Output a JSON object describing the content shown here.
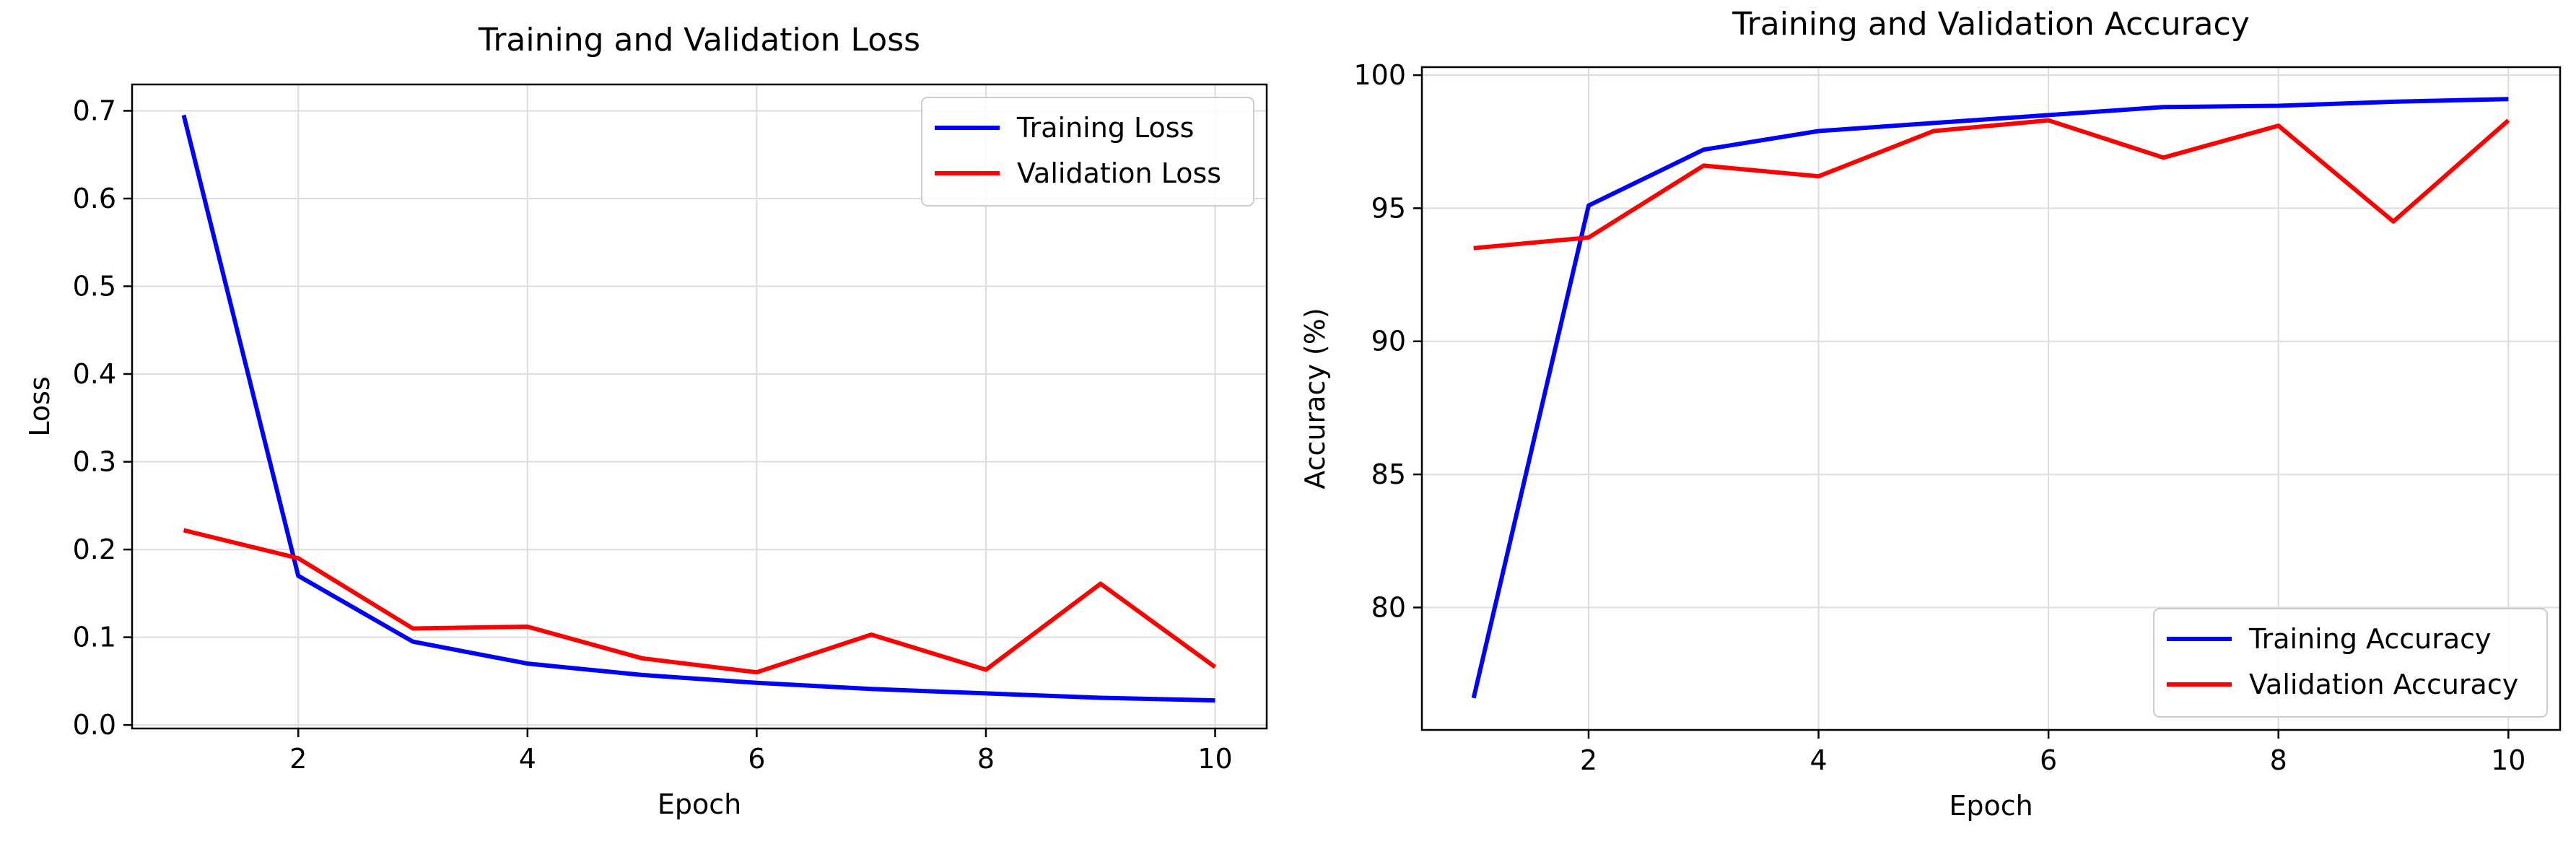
{
  "chart_data": [
    {
      "type": "line",
      "title": "Training and Validation Loss",
      "xlabel": "Epoch",
      "ylabel": "Loss",
      "x": [
        1,
        2,
        3,
        4,
        5,
        6,
        7,
        8,
        9,
        10
      ],
      "xlim": [
        0.55,
        10.45
      ],
      "ylim": [
        -0.004,
        0.73
      ],
      "xticks": [
        2,
        4,
        6,
        8,
        10
      ],
      "xtick_labels": [
        "2",
        "4",
        "6",
        "8",
        "10"
      ],
      "yticks": [
        0.0,
        0.1,
        0.2,
        0.3,
        0.4,
        0.5,
        0.6,
        0.7
      ],
      "ytick_labels": [
        "0.0",
        "0.1",
        "0.2",
        "0.3",
        "0.4",
        "0.5",
        "0.6",
        "0.7"
      ],
      "grid": true,
      "legend_loc": "upper right",
      "series": [
        {
          "name": "Training Loss",
          "color": "#0000ff",
          "values": [
            0.695,
            0.17,
            0.095,
            0.07,
            0.057,
            0.048,
            0.041,
            0.036,
            0.031,
            0.028
          ]
        },
        {
          "name": "Validation Loss",
          "color": "#ff0000",
          "values": [
            0.222,
            0.19,
            0.11,
            0.112,
            0.076,
            0.06,
            0.103,
            0.063,
            0.161,
            0.066
          ]
        }
      ]
    },
    {
      "type": "line",
      "title": "Training and Validation Accuracy",
      "xlabel": "Epoch",
      "ylabel": "Accuracy (%)",
      "x": [
        1,
        2,
        3,
        4,
        5,
        6,
        7,
        8,
        9,
        10
      ],
      "xlim": [
        0.55,
        10.45
      ],
      "ylim": [
        75.4,
        100.3
      ],
      "xticks": [
        2,
        4,
        6,
        8,
        10
      ],
      "xtick_labels": [
        "2",
        "4",
        "6",
        "8",
        "10"
      ],
      "yticks": [
        80,
        85,
        90,
        95,
        100
      ],
      "ytick_labels": [
        "80",
        "85",
        "90",
        "95",
        "100"
      ],
      "grid": true,
      "legend_loc": "lower right",
      "series": [
        {
          "name": "Training Accuracy",
          "color": "#0000ff",
          "values": [
            76.6,
            95.1,
            97.2,
            97.9,
            98.2,
            98.5,
            98.8,
            98.85,
            99.0,
            99.1
          ]
        },
        {
          "name": "Validation Accuracy",
          "color": "#ff0000",
          "values": [
            93.5,
            93.9,
            96.6,
            96.2,
            97.9,
            98.3,
            96.9,
            98.1,
            94.5,
            98.3
          ]
        }
      ]
    }
  ]
}
